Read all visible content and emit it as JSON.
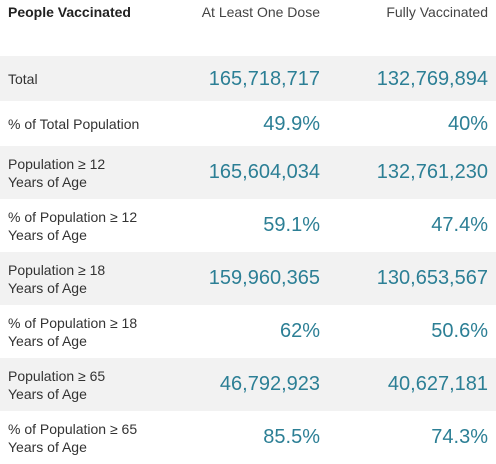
{
  "header": {
    "label": "People Vaccinated",
    "at_least_one_dose": "At Least One Dose",
    "fully_vaccinated": "Fully Vaccinated"
  },
  "rows": [
    {
      "label_line1": "Total",
      "label_line2": "",
      "at_least_one_dose": "165,718,717",
      "fully_vaccinated": "132,769,894"
    },
    {
      "label_line1": "% of Total Population",
      "label_line2": "",
      "at_least_one_dose": "49.9%",
      "fully_vaccinated": "40%"
    },
    {
      "label_line1": "Population ≥ 12",
      "label_line2": "Years of Age",
      "at_least_one_dose": "165,604,034",
      "fully_vaccinated": "132,761,230"
    },
    {
      "label_line1": "% of Population ≥ 12",
      "label_line2": "Years of Age",
      "at_least_one_dose": "59.1%",
      "fully_vaccinated": "47.4%"
    },
    {
      "label_line1": "Population ≥ 18",
      "label_line2": "Years of Age",
      "at_least_one_dose": "159,960,365",
      "fully_vaccinated": "130,653,567"
    },
    {
      "label_line1": "% of Population ≥ 18",
      "label_line2": "Years of Age",
      "at_least_one_dose": "62%",
      "fully_vaccinated": "50.6%"
    },
    {
      "label_line1": "Population ≥ 65",
      "label_line2": "Years of Age",
      "at_least_one_dose": "46,792,923",
      "fully_vaccinated": "40,627,181"
    },
    {
      "label_line1": "% of Population ≥ 65",
      "label_line2": "Years of Age",
      "at_least_one_dose": "85.5%",
      "fully_vaccinated": "74.3%"
    }
  ],
  "colors": {
    "value_text": "#2c7f95",
    "row_shade": "#f2f2f2"
  }
}
